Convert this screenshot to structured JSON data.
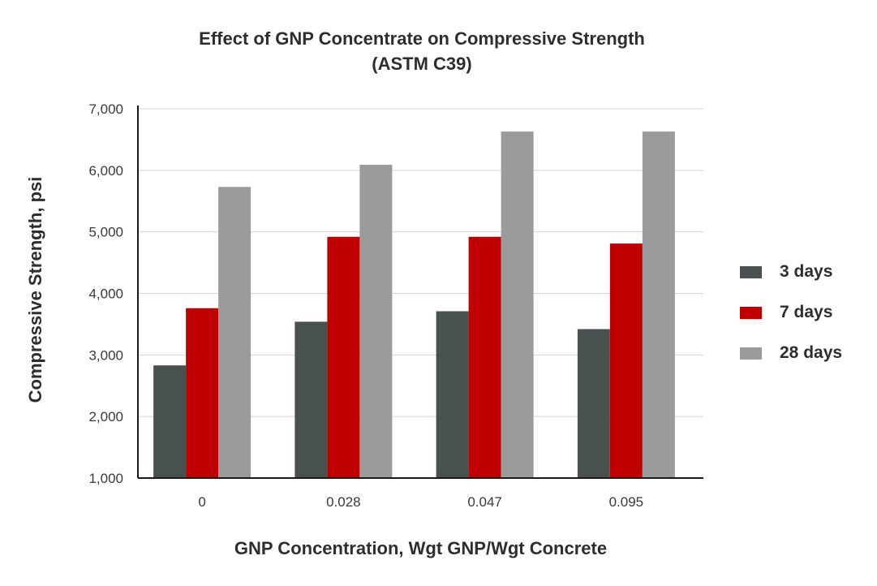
{
  "chart_data": {
    "type": "bar",
    "title": "Effect of GNP Concentrate on Compressive Strength",
    "subtitle": "(ASTM C39)",
    "xlabel": "GNP Concentration, Wgt GNP/Wgt Concrete",
    "ylabel": "Compressive Strength, psi",
    "categories": [
      "0",
      "0.028",
      "0.047",
      "0.095"
    ],
    "ylim": [
      1000,
      7000
    ],
    "yticks": [
      "1,000",
      "2,000",
      "3,000",
      "4,000",
      "5,000",
      "6,000",
      "7,000"
    ],
    "grid": true,
    "legend_position": "right",
    "series": [
      {
        "name": "3 days",
        "color": "#485150",
        "values": [
          2830,
          3540,
          3710,
          3420
        ]
      },
      {
        "name": "7 days",
        "color": "#c00000",
        "values": [
          3760,
          4920,
          4920,
          4810
        ]
      },
      {
        "name": "28 days",
        "color": "#9b9b9b",
        "values": [
          5730,
          6090,
          6630,
          6630
        ]
      }
    ]
  }
}
